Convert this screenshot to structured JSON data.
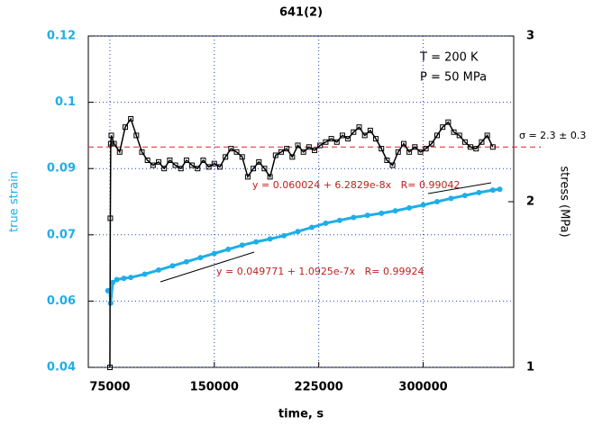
{
  "chart_data": {
    "type": "line",
    "title": "641(2)",
    "x_label": "time, s",
    "y_label": "true strain",
    "y2_label": "stress (MPa)",
    "xlim": [
      59500,
      365000
    ],
    "xticks": [
      75000,
      150000,
      225000,
      300000
    ],
    "ylim": [
      0.04,
      0.12
    ],
    "yticks": [
      0.04,
      {
        "value": 0.056,
        "label": "0.06"
      },
      {
        "value": 0.072,
        "label": "0.07"
      },
      {
        "value": 0.088,
        "label": "0.09"
      },
      {
        "value": 0.104,
        "label": "0.1"
      },
      0.12
    ],
    "y2lim": [
      1,
      3
    ],
    "y2ticks": [
      1,
      2,
      3
    ],
    "grid": true,
    "series": [
      {
        "name": "true strain",
        "color": "#1eaee8",
        "axis": "y",
        "marker": "circle",
        "x": [
          73500,
          75000,
          75500,
          77000,
          80000,
          85000,
          90000,
          100000,
          110000,
          120000,
          130000,
          140000,
          150000,
          160000,
          170000,
          180000,
          190000,
          200000,
          210000,
          220000,
          230000,
          240000,
          250000,
          260000,
          270000,
          280000,
          290000,
          300000,
          310000,
          320000,
          330000,
          340000,
          350000,
          355000
        ],
        "values": [
          0.0585,
          0.0585,
          0.0555,
          0.0605,
          0.0612,
          0.0615,
          0.0617,
          0.0625,
          0.0635,
          0.0645,
          0.0655,
          0.0665,
          0.0675,
          0.0685,
          0.0695,
          0.0703,
          0.071,
          0.0718,
          0.0728,
          0.0738,
          0.0748,
          0.0755,
          0.0762,
          0.0767,
          0.0772,
          0.0778,
          0.0785,
          0.0792,
          0.08,
          0.0808,
          0.0815,
          0.0822,
          0.0828,
          0.083
        ]
      },
      {
        "name": "stress",
        "color": "#000000",
        "axis": "y2",
        "marker": "square",
        "x": [
          75000,
          75300,
          75600,
          76000,
          78000,
          82000,
          86000,
          90000,
          94000,
          98000,
          102000,
          106000,
          110000,
          114000,
          118000,
          122000,
          126000,
          130000,
          134000,
          138000,
          142000,
          146000,
          150000,
          154000,
          158000,
          162000,
          166000,
          170000,
          174000,
          178000,
          182000,
          186000,
          190000,
          194000,
          198000,
          202000,
          206000,
          210000,
          214000,
          218000,
          222000,
          226000,
          230000,
          234000,
          238000,
          242000,
          246000,
          250000,
          254000,
          258000,
          262000,
          266000,
          270000,
          274000,
          278000,
          282000,
          286000,
          290000,
          294000,
          298000,
          302000,
          306000,
          310000,
          314000,
          318000,
          322000,
          326000,
          330000,
          334000,
          338000,
          342000,
          346000,
          350000
        ],
        "values": [
          1.0,
          1.9,
          2.35,
          2.4,
          2.35,
          2.3,
          2.45,
          2.5,
          2.4,
          2.3,
          2.25,
          2.22,
          2.24,
          2.2,
          2.25,
          2.22,
          2.2,
          2.25,
          2.22,
          2.2,
          2.25,
          2.21,
          2.23,
          2.21,
          2.27,
          2.32,
          2.3,
          2.27,
          2.15,
          2.2,
          2.24,
          2.2,
          2.15,
          2.28,
          2.3,
          2.32,
          2.27,
          2.34,
          2.3,
          2.33,
          2.31,
          2.34,
          2.36,
          2.38,
          2.36,
          2.4,
          2.38,
          2.42,
          2.45,
          2.4,
          2.43,
          2.38,
          2.32,
          2.25,
          2.22,
          2.3,
          2.35,
          2.3,
          2.33,
          2.3,
          2.32,
          2.35,
          2.4,
          2.45,
          2.48,
          2.42,
          2.4,
          2.36,
          2.33,
          2.32,
          2.36,
          2.4,
          2.33
        ]
      }
    ],
    "hline": {
      "axis": "y2",
      "value": 2.33,
      "color": "#e02020"
    },
    "annotations": [
      "T = 200 K",
      "P = 50 MPa",
      "σ = 2.3 ± 0.3",
      "y = 0.060024 + 6.2829e-8x   R= 0.99042",
      "y = 0.049771 + 1.0925e-7x   R= 0.99924"
    ]
  }
}
